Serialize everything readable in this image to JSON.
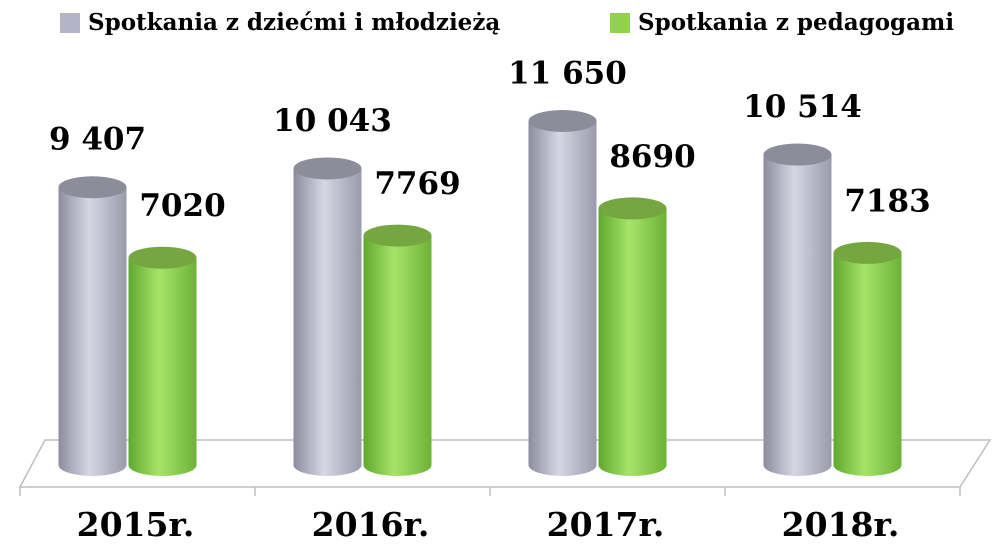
{
  "chart_data": {
    "type": "bar",
    "categories": [
      "2015r.",
      "2016r.",
      "2017r.",
      "2018r."
    ],
    "series": [
      {
        "name": "Spotkania z dziećmi i młodzieżą",
        "color": "#b4b4c6",
        "values": [
          9407,
          10043,
          11650,
          10514
        ],
        "value_labels": [
          "9 407",
          "10 043",
          "11 650",
          "10 514"
        ]
      },
      {
        "name": "Spotkania z pedagogami",
        "color": "#92d050",
        "values": [
          7020,
          7769,
          8690,
          7183
        ]
      }
    ]
  }
}
